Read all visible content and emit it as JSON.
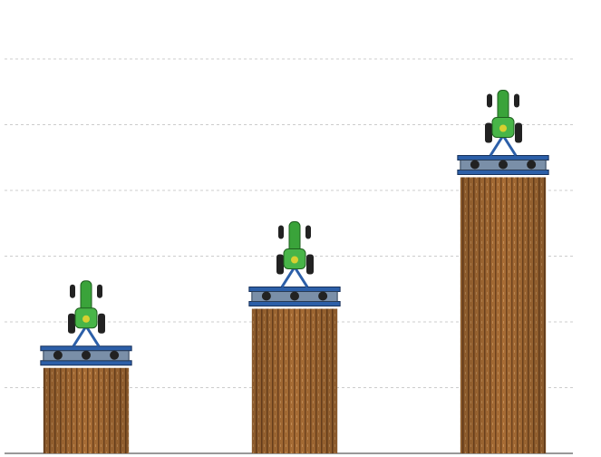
{
  "chart_data": {
    "type": "bar",
    "categories": [
      null,
      null,
      null
    ],
    "values": [
      1.3,
      2.2,
      4.2
    ],
    "color": "#a86d35",
    "ylim": [
      0,
      7
    ],
    "yticks": [
      0,
      1,
      2,
      3,
      4,
      5,
      6
    ],
    "grid": true
  }
}
